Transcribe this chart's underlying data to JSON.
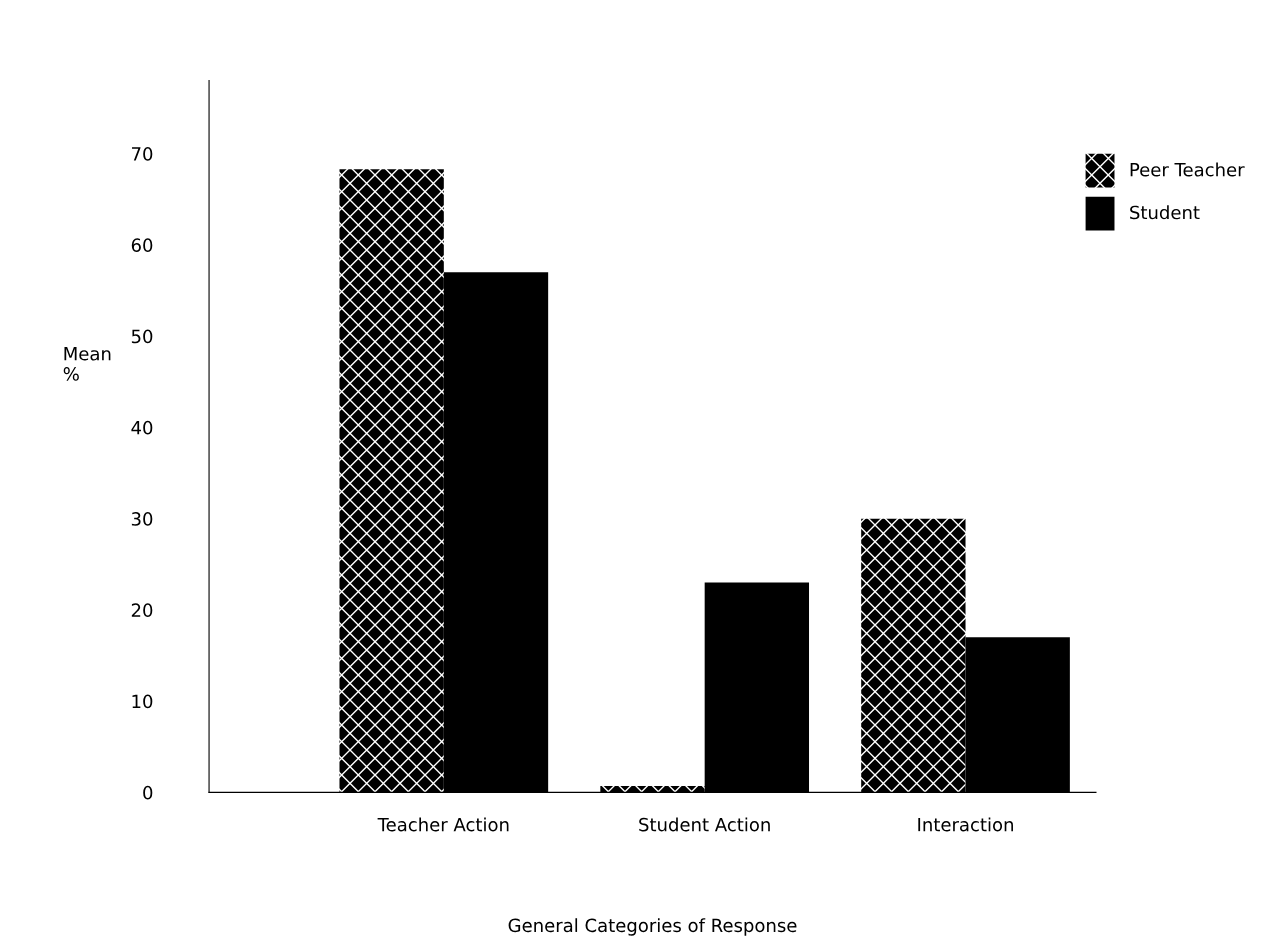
{
  "chart_data": {
    "type": "bar",
    "xlabel": "General Categories of Response",
    "ylabel": "Mean\n%",
    "categories": [
      "Teacher Action",
      "Student Action",
      "Interaction"
    ],
    "series": [
      {
        "name": "Peer Teacher",
        "color": "#000000",
        "values": [
          68.3,
          0.7,
          30
        ]
      },
      {
        "name": "Student",
        "color": "#000000",
        "values": [
          57,
          23,
          17
        ]
      }
    ],
    "ylim": [
      0,
      78
    ],
    "yticks": [
      0,
      10,
      20,
      30,
      40,
      50,
      60,
      70
    ],
    "grid": false,
    "legend": "top right"
  }
}
